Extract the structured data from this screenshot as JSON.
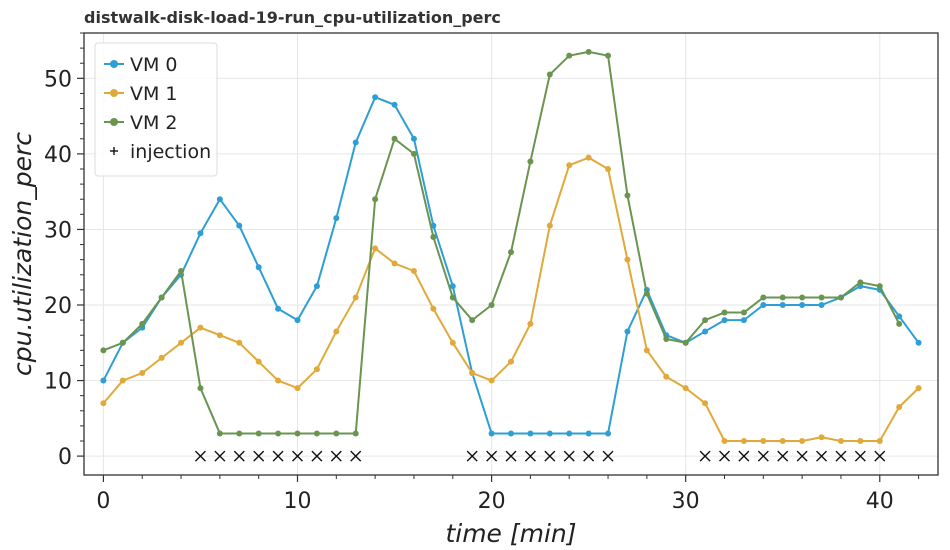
{
  "chart_data": {
    "type": "line",
    "title": "distwalk-disk-load-19-run_cpu-utilization_perc",
    "xlabel": "time [min]",
    "ylabel": "cpu.utilization_perc",
    "xlim": [
      -1,
      43
    ],
    "ylim": [
      -2.5,
      56
    ],
    "x_ticks": [
      0,
      10,
      20,
      30,
      40
    ],
    "y_ticks": [
      0,
      10,
      20,
      30,
      40,
      50
    ],
    "grid": true,
    "legend_position": "top-left",
    "x": [
      0,
      1,
      2,
      3,
      4,
      5,
      6,
      7,
      8,
      9,
      10,
      11,
      12,
      13,
      14,
      15,
      16,
      17,
      18,
      19,
      20,
      21,
      22,
      23,
      24,
      25,
      26,
      27,
      28,
      29,
      30,
      31,
      32,
      33,
      34,
      35,
      36,
      37,
      38,
      39,
      40,
      41,
      42
    ],
    "series": [
      {
        "name": "VM 0",
        "color": "#2e9fd4",
        "values": [
          10,
          15,
          17,
          21,
          24,
          29.5,
          34,
          30.5,
          25,
          19.5,
          18,
          22.5,
          31.5,
          41.5,
          47.5,
          46.5,
          42,
          30.5,
          22.5,
          11,
          3,
          3,
          3,
          3,
          3,
          3,
          3,
          16.5,
          22,
          16,
          15,
          16.5,
          18,
          18,
          20,
          20,
          20,
          20,
          21,
          22.5,
          22,
          18.5,
          15
        ]
      },
      {
        "name": "VM 1",
        "color": "#e0a93a",
        "values": [
          7,
          10,
          11,
          13,
          15,
          17,
          16,
          15,
          12.5,
          10,
          9,
          11.5,
          16.5,
          21,
          27.5,
          25.5,
          24.5,
          19.5,
          15,
          11,
          10,
          12.5,
          17.5,
          30.5,
          38.5,
          39.5,
          38,
          26,
          14,
          10.5,
          9,
          7,
          2,
          2,
          2,
          2,
          2,
          2.5,
          2,
          2,
          2,
          6.5,
          9
        ]
      },
      {
        "name": "VM 2",
        "color": "#6a9450",
        "values": [
          14,
          15,
          17.5,
          21,
          24.5,
          9,
          3,
          3,
          3,
          3,
          3,
          3,
          3,
          3,
          34,
          42,
          40,
          29,
          21,
          18,
          20,
          27,
          39,
          50.5,
          53,
          53.5,
          53,
          34.5,
          21.5,
          15.5,
          15,
          18,
          19,
          19,
          21,
          21,
          21,
          21,
          21,
          23,
          22.5,
          17.5,
          null
        ]
      }
    ],
    "injection": {
      "name": "injection",
      "marker": "x",
      "y": 0,
      "x": [
        5,
        6,
        7,
        8,
        9,
        10,
        11,
        12,
        13,
        19,
        20,
        21,
        22,
        23,
        24,
        25,
        26,
        31,
        32,
        33,
        34,
        35,
        36,
        37,
        38,
        39,
        40
      ]
    }
  }
}
